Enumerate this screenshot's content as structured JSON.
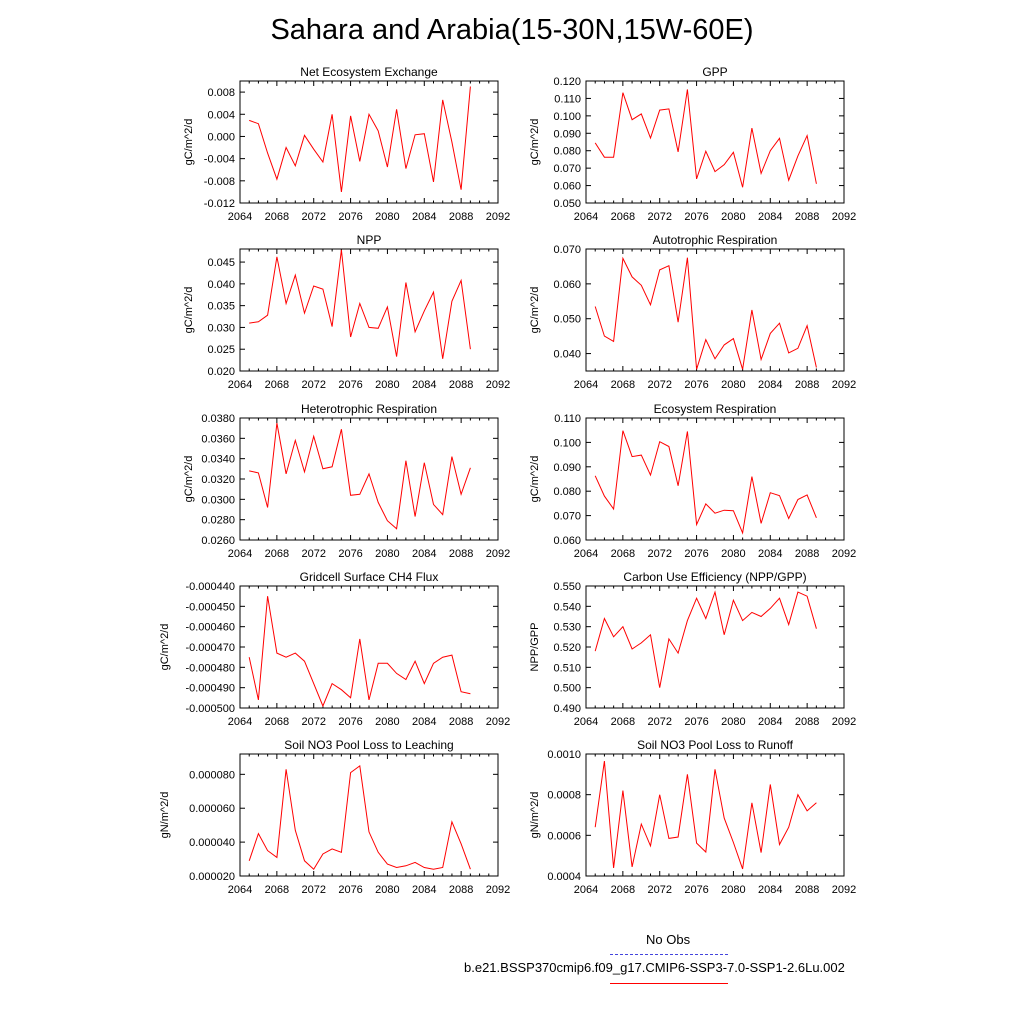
{
  "title": "Sahara and Arabia(15-30N,15W-60E)",
  "colors": {
    "model_line": "#ff0000",
    "obs_line": "#4444dd",
    "axis": "#000000"
  },
  "legend": {
    "obs_label": "No Obs",
    "model_label": "b.e21.BSSP370cmip6.f09_g17.CMIP6-SSP3-7.0-SSP1-2.6Lu.002"
  },
  "chart_data": [
    {
      "type": "line",
      "title": "Net Ecosystem Exchange",
      "ylabel": "gC/m^2/d",
      "xlabel": "",
      "xlim": [
        2064,
        2092
      ],
      "ylim": [
        -0.012,
        0.01
      ],
      "xticks": [
        2064,
        2068,
        2072,
        2076,
        2080,
        2084,
        2088,
        2092
      ],
      "yticks": [
        -0.012,
        -0.008,
        -0.004,
        0.0,
        0.004,
        0.008
      ],
      "yticklabels": [
        "-0.012",
        "-0.008",
        "-0.004",
        "0.000",
        "0.004",
        "0.008"
      ],
      "x": [
        2065,
        2066,
        2067,
        2068,
        2069,
        2070,
        2071,
        2072,
        2073,
        2074,
        2075,
        2076,
        2077,
        2078,
        2079,
        2080,
        2081,
        2082,
        2083,
        2084,
        2085,
        2086,
        2087,
        2088,
        2089
      ],
      "series": [
        {
          "values": [
            0.0029,
            0.0023,
            -0.003,
            -0.0077,
            -0.002,
            -0.0053,
            0.0002,
            -0.0023,
            -0.0046,
            0.004,
            -0.01,
            0.0037,
            -0.0045,
            0.004,
            0.001,
            -0.0055,
            0.0049,
            -0.0058,
            0.0003,
            0.0005,
            -0.0082,
            0.0066,
            -0.001,
            -0.0096,
            0.009
          ]
        }
      ]
    },
    {
      "type": "line",
      "title": "GPP",
      "ylabel": "gC/m^2/d",
      "xlabel": "",
      "xlim": [
        2064,
        2092
      ],
      "ylim": [
        0.05,
        0.12
      ],
      "xticks": [
        2064,
        2068,
        2072,
        2076,
        2080,
        2084,
        2088,
        2092
      ],
      "yticks": [
        0.05,
        0.06,
        0.07,
        0.08,
        0.09,
        0.1,
        0.11,
        0.12
      ],
      "yticklabels": [
        "0.050",
        "0.060",
        "0.070",
        "0.080",
        "0.090",
        "0.100",
        "0.110",
        "0.120"
      ],
      "x": [
        2065,
        2066,
        2067,
        2068,
        2069,
        2070,
        2071,
        2072,
        2073,
        2074,
        2075,
        2076,
        2077,
        2078,
        2079,
        2080,
        2081,
        2082,
        2083,
        2084,
        2085,
        2086,
        2087,
        2088,
        2089
      ],
      "series": [
        {
          "values": [
            0.0845,
            0.0763,
            0.0763,
            0.1133,
            0.0978,
            0.1011,
            0.0873,
            0.1033,
            0.104,
            0.0793,
            0.1152,
            0.0638,
            0.0797,
            0.068,
            0.072,
            0.0791,
            0.059,
            0.093,
            0.067,
            0.08,
            0.0871,
            0.0631,
            0.077,
            0.0887,
            0.061
          ]
        }
      ]
    },
    {
      "type": "line",
      "title": "NPP",
      "ylabel": "gC/m^2/d",
      "xlabel": "",
      "xlim": [
        2064,
        2092
      ],
      "ylim": [
        0.02,
        0.048
      ],
      "xticks": [
        2064,
        2068,
        2072,
        2076,
        2080,
        2084,
        2088,
        2092
      ],
      "yticks": [
        0.02,
        0.025,
        0.03,
        0.035,
        0.04,
        0.045
      ],
      "yticklabels": [
        "0.020",
        "0.025",
        "0.030",
        "0.035",
        "0.040",
        "0.045"
      ],
      "x": [
        2065,
        2066,
        2067,
        2068,
        2069,
        2070,
        2071,
        2072,
        2073,
        2074,
        2075,
        2076,
        2077,
        2078,
        2079,
        2080,
        2081,
        2082,
        2083,
        2084,
        2085,
        2086,
        2087,
        2088,
        2089
      ],
      "series": [
        {
          "values": [
            0.031,
            0.0313,
            0.0328,
            0.0462,
            0.0355,
            0.042,
            0.0333,
            0.0395,
            0.0388,
            0.0302,
            0.0478,
            0.0278,
            0.0355,
            0.03,
            0.0298,
            0.0347,
            0.0233,
            0.0403,
            0.029,
            0.0338,
            0.0381,
            0.0228,
            0.036,
            0.0408,
            0.025
          ]
        }
      ]
    },
    {
      "type": "line",
      "title": "Autotrophic Respiration",
      "ylabel": "gC/m^2/d",
      "xlabel": "",
      "xlim": [
        2064,
        2092
      ],
      "ylim": [
        0.035,
        0.07
      ],
      "xticks": [
        2064,
        2068,
        2072,
        2076,
        2080,
        2084,
        2088,
        2092
      ],
      "yticks": [
        0.04,
        0.05,
        0.06,
        0.07
      ],
      "yticklabels": [
        "0.040",
        "0.050",
        "0.060",
        "0.070"
      ],
      "x": [
        2065,
        2066,
        2067,
        2068,
        2069,
        2070,
        2071,
        2072,
        2073,
        2074,
        2075,
        2076,
        2077,
        2078,
        2079,
        2080,
        2081,
        2082,
        2083,
        2084,
        2085,
        2086,
        2087,
        2088,
        2089
      ],
      "series": [
        {
          "values": [
            0.0535,
            0.045,
            0.0435,
            0.0673,
            0.062,
            0.0596,
            0.054,
            0.064,
            0.0652,
            0.049,
            0.0675,
            0.0355,
            0.044,
            0.0385,
            0.0425,
            0.0443,
            0.0355,
            0.0525,
            0.0383,
            0.0458,
            0.0487,
            0.0402,
            0.0415,
            0.048,
            0.036
          ]
        }
      ]
    },
    {
      "type": "line",
      "title": "Heterotrophic Respiration",
      "ylabel": "gC/m^2/d",
      "xlabel": "",
      "xlim": [
        2064,
        2092
      ],
      "ylim": [
        0.026,
        0.038
      ],
      "xticks": [
        2064,
        2068,
        2072,
        2076,
        2080,
        2084,
        2088,
        2092
      ],
      "yticks": [
        0.026,
        0.028,
        0.03,
        0.032,
        0.034,
        0.036,
        0.038
      ],
      "yticklabels": [
        "0.0260",
        "0.0280",
        "0.0300",
        "0.0320",
        "0.0340",
        "0.0360",
        "0.0380"
      ],
      "x": [
        2065,
        2066,
        2067,
        2068,
        2069,
        2070,
        2071,
        2072,
        2073,
        2074,
        2075,
        2076,
        2077,
        2078,
        2079,
        2080,
        2081,
        2082,
        2083,
        2084,
        2085,
        2086,
        2087,
        2088,
        2089
      ],
      "series": [
        {
          "values": [
            0.0328,
            0.0326,
            0.0292,
            0.0375,
            0.0325,
            0.0358,
            0.0327,
            0.0362,
            0.033,
            0.0332,
            0.0369,
            0.0304,
            0.0305,
            0.0325,
            0.0297,
            0.0279,
            0.0271,
            0.0338,
            0.0283,
            0.0336,
            0.0295,
            0.0285,
            0.0342,
            0.0305,
            0.0331
          ]
        }
      ]
    },
    {
      "type": "line",
      "title": "Ecosystem Respiration",
      "ylabel": "gC/m^2/d",
      "xlabel": "",
      "xlim": [
        2064,
        2092
      ],
      "ylim": [
        0.06,
        0.11
      ],
      "xticks": [
        2064,
        2068,
        2072,
        2076,
        2080,
        2084,
        2088,
        2092
      ],
      "yticks": [
        0.06,
        0.07,
        0.08,
        0.09,
        0.1,
        0.11
      ],
      "yticklabels": [
        "0.060",
        "0.070",
        "0.080",
        "0.090",
        "0.100",
        "0.110"
      ],
      "x": [
        2065,
        2066,
        2067,
        2068,
        2069,
        2070,
        2071,
        2072,
        2073,
        2074,
        2075,
        2076,
        2077,
        2078,
        2079,
        2080,
        2081,
        2082,
        2083,
        2084,
        2085,
        2086,
        2087,
        2088,
        2089
      ],
      "series": [
        {
          "values": [
            0.0863,
            0.078,
            0.0727,
            0.1048,
            0.0942,
            0.0948,
            0.0866,
            0.1003,
            0.0983,
            0.0822,
            0.1045,
            0.0663,
            0.0748,
            0.071,
            0.0722,
            0.072,
            0.0629,
            0.086,
            0.0668,
            0.0794,
            0.0782,
            0.0688,
            0.0766,
            0.0785,
            0.0691
          ]
        }
      ]
    },
    {
      "type": "line",
      "title": "Gridcell Surface CH4 Flux",
      "ylabel": "gC/m^2/d",
      "xlabel": "",
      "xlim": [
        2064,
        2092
      ],
      "ylim": [
        -0.0005,
        -0.00044
      ],
      "xticks": [
        2064,
        2068,
        2072,
        2076,
        2080,
        2084,
        2088,
        2092
      ],
      "yticks": [
        -0.0005,
        -0.00049,
        -0.00048,
        -0.00047,
        -0.00046,
        -0.00045,
        -0.00044
      ],
      "yticklabels": [
        "-0.000500",
        "-0.000490",
        "-0.000480",
        "-0.000470",
        "-0.000460",
        "-0.000450",
        "-0.000440"
      ],
      "x": [
        2065,
        2066,
        2067,
        2068,
        2069,
        2070,
        2071,
        2072,
        2073,
        2074,
        2075,
        2076,
        2077,
        2078,
        2079,
        2080,
        2081,
        2082,
        2083,
        2084,
        2085,
        2086,
        2087,
        2088,
        2089
      ],
      "series": [
        {
          "values": [
            -0.000475,
            -0.000496,
            -0.000445,
            -0.000473,
            -0.000475,
            -0.000473,
            -0.000477,
            -0.000488,
            -0.000499,
            -0.000488,
            -0.000491,
            -0.000495,
            -0.000466,
            -0.000496,
            -0.000478,
            -0.000478,
            -0.000483,
            -0.000486,
            -0.000477,
            -0.000488,
            -0.000478,
            -0.000475,
            -0.000474,
            -0.000492,
            -0.000493
          ]
        }
      ]
    },
    {
      "type": "line",
      "title": "Carbon Use Efficiency (NPP/GPP)",
      "ylabel": "NPP/GPP",
      "xlabel": "",
      "xlim": [
        2064,
        2092
      ],
      "ylim": [
        0.49,
        0.55
      ],
      "xticks": [
        2064,
        2068,
        2072,
        2076,
        2080,
        2084,
        2088,
        2092
      ],
      "yticks": [
        0.49,
        0.5,
        0.51,
        0.52,
        0.53,
        0.54,
        0.55
      ],
      "yticklabels": [
        "0.490",
        "0.500",
        "0.510",
        "0.520",
        "0.530",
        "0.540",
        "0.550"
      ],
      "x": [
        2065,
        2066,
        2067,
        2068,
        2069,
        2070,
        2071,
        2072,
        2073,
        2074,
        2075,
        2076,
        2077,
        2078,
        2079,
        2080,
        2081,
        2082,
        2083,
        2084,
        2085,
        2086,
        2087,
        2088,
        2089
      ],
      "series": [
        {
          "values": [
            0.518,
            0.534,
            0.525,
            0.53,
            0.519,
            0.522,
            0.526,
            0.5,
            0.524,
            0.517,
            0.533,
            0.544,
            0.534,
            0.547,
            0.526,
            0.543,
            0.533,
            0.537,
            0.535,
            0.539,
            0.544,
            0.531,
            0.547,
            0.545,
            0.529
          ]
        }
      ]
    },
    {
      "type": "line",
      "title": "Soil NO3 Pool Loss to Leaching",
      "ylabel": "gN/m^2/d",
      "xlabel": "",
      "xlim": [
        2064,
        2092
      ],
      "ylim": [
        2e-05,
        9.2e-05
      ],
      "xticks": [
        2064,
        2068,
        2072,
        2076,
        2080,
        2084,
        2088,
        2092
      ],
      "yticks": [
        2e-05,
        4e-05,
        6e-05,
        8e-05
      ],
      "yticklabels": [
        "0.000020",
        "0.000040",
        "0.000060",
        "0.000080"
      ],
      "x": [
        2065,
        2066,
        2067,
        2068,
        2069,
        2070,
        2071,
        2072,
        2073,
        2074,
        2075,
        2076,
        2077,
        2078,
        2079,
        2080,
        2081,
        2082,
        2083,
        2084,
        2085,
        2086,
        2087,
        2088,
        2089
      ],
      "series": [
        {
          "values": [
            2.9e-05,
            4.5e-05,
            3.5e-05,
            3.1e-05,
            8.3e-05,
            4.7e-05,
            2.9e-05,
            2.4e-05,
            3.3e-05,
            3.6e-05,
            3.4e-05,
            8.1e-05,
            8.5e-05,
            4.6e-05,
            3.4e-05,
            2.7e-05,
            2.5e-05,
            2.6e-05,
            2.8e-05,
            2.5e-05,
            2.4e-05,
            2.5e-05,
            5.2e-05,
            3.9e-05,
            2.4e-05
          ]
        }
      ]
    },
    {
      "type": "line",
      "title": "Soil NO3 Pool Loss to Runoff",
      "ylabel": "gN/m^2/d",
      "xlabel": "",
      "xlim": [
        2064,
        2092
      ],
      "ylim": [
        0.0004,
        0.001
      ],
      "xticks": [
        2064,
        2068,
        2072,
        2076,
        2080,
        2084,
        2088,
        2092
      ],
      "yticks": [
        0.0004,
        0.0006,
        0.0008,
        0.001
      ],
      "yticklabels": [
        "0.0004",
        "0.0006",
        "0.0008",
        "0.0010"
      ],
      "x": [
        2065,
        2066,
        2067,
        2068,
        2069,
        2070,
        2071,
        2072,
        2073,
        2074,
        2075,
        2076,
        2077,
        2078,
        2079,
        2080,
        2081,
        2082,
        2083,
        2084,
        2085,
        2086,
        2087,
        2088,
        2089
      ],
      "series": [
        {
          "values": [
            0.00064,
            0.000965,
            0.00044,
            0.00082,
            0.000445,
            0.000655,
            0.000548,
            0.0008,
            0.000585,
            0.000592,
            0.0009,
            0.000562,
            0.000518,
            0.000925,
            0.000685,
            0.000565,
            0.000435,
            0.00076,
            0.000515,
            0.00085,
            0.000555,
            0.00064,
            0.0008,
            0.00072,
            0.00076
          ]
        }
      ]
    }
  ]
}
